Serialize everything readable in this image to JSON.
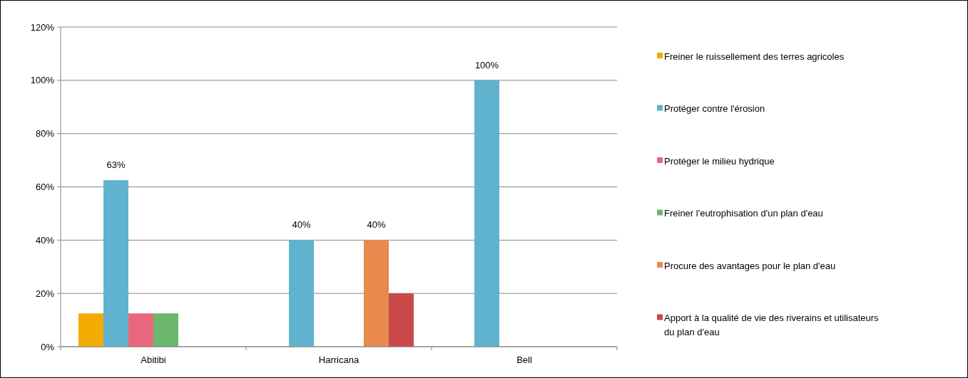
{
  "chart_data": {
    "type": "bar",
    "categories": [
      "Abitibi",
      "Harricana",
      "Bell"
    ],
    "series": [
      {
        "name": "Freiner le ruissellement des terres agricoles",
        "color": "#f2ac00",
        "values": [
          12.5,
          null,
          null
        ],
        "value_labels": [
          null,
          null,
          null
        ]
      },
      {
        "name": "Protéger contre l'érosion",
        "color": "#5fb3ce",
        "values": [
          62.5,
          40,
          100
        ],
        "value_labels": [
          "63%",
          "40%",
          "100%"
        ]
      },
      {
        "name": "Protéger le milieu hydrique",
        "color": "#e8697d",
        "values": [
          12.5,
          null,
          null
        ],
        "value_labels": [
          null,
          null,
          null
        ]
      },
      {
        "name": "Freiner l'eutrophisation d'un plan d'eau",
        "color": "#6bb76d",
        "values": [
          12.5,
          null,
          null
        ],
        "value_labels": [
          null,
          null,
          null
        ]
      },
      {
        "name": "Procure des avantages pour le plan d'eau",
        "color": "#e8894e",
        "values": [
          null,
          40,
          null
        ],
        "value_labels": [
          null,
          "40%",
          null
        ]
      },
      {
        "name": "Apport à la qualité de vie des riverains et utilisateurs du plan d'eau",
        "color": "#c9484a",
        "values": [
          null,
          20,
          null
        ],
        "value_labels": [
          null,
          null,
          null
        ]
      }
    ],
    "ylim": [
      0,
      120
    ],
    "yticks": [
      {
        "value": 0,
        "label": "0%"
      },
      {
        "value": 20,
        "label": "20%"
      },
      {
        "value": 40,
        "label": "40%"
      },
      {
        "value": 60,
        "label": "60%"
      },
      {
        "value": 80,
        "label": "80%"
      },
      {
        "value": 100,
        "label": "100%"
      },
      {
        "value": 120,
        "label": "120%"
      }
    ],
    "grid": "y",
    "legend": "right"
  }
}
